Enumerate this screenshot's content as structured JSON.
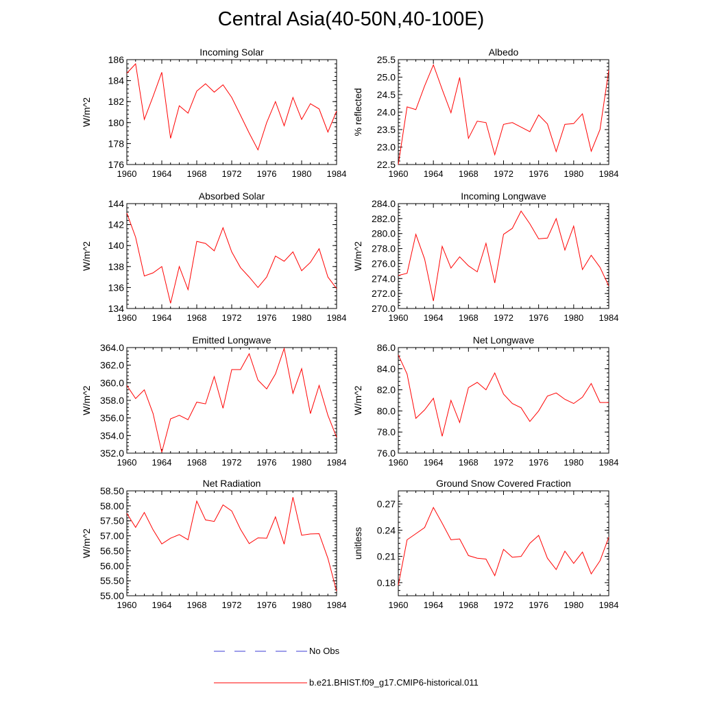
{
  "page": {
    "title": "Central Asia(40-50N,40-100E)"
  },
  "legend": {
    "items": [
      {
        "label": "No Obs",
        "color": "#3b3bd6",
        "style": "dashed"
      },
      {
        "label": "b.e21.BHIST.f09_g17.CMIP6-historical.011",
        "color": "#ff0000",
        "style": "solid"
      }
    ]
  },
  "chart_data": [
    {
      "type": "line",
      "title": "Incoming Solar",
      "ylabel": "W/m^2",
      "xlabel": "",
      "xlim": [
        1960,
        1984
      ],
      "ylim": [
        176,
        186
      ],
      "xticks": [
        "1960",
        "1964",
        "1968",
        "1972",
        "1976",
        "1980",
        "1984"
      ],
      "yticks": [
        "176",
        "178",
        "180",
        "182",
        "184",
        "186"
      ],
      "x": [
        1960,
        1961,
        1962,
        1963,
        1964,
        1965,
        1966,
        1967,
        1968,
        1969,
        1970,
        1971,
        1972,
        1973,
        1974,
        1975,
        1976,
        1977,
        1978,
        1979,
        1980,
        1981,
        1982,
        1983,
        1984
      ],
      "series": [
        {
          "name": "b.e21.BHIST.f09_g17.CMIP6-historical.011",
          "color": "#ff0000",
          "values": [
            184.7,
            185.6,
            180.3,
            182.5,
            184.8,
            178.5,
            181.6,
            180.9,
            183.0,
            183.7,
            182.9,
            183.6,
            182.4,
            180.7,
            179.0,
            177.4,
            180.0,
            182.0,
            179.7,
            182.4,
            180.3,
            181.8,
            181.3,
            179.1,
            181.1
          ]
        }
      ]
    },
    {
      "type": "line",
      "title": "Albedo",
      "ylabel": "% reflected",
      "xlabel": "",
      "xlim": [
        1960,
        1984
      ],
      "ylim": [
        22.5,
        25.5
      ],
      "xticks": [
        "1960",
        "1964",
        "1968",
        "1972",
        "1976",
        "1980",
        "1984"
      ],
      "yticks": [
        "22.5",
        "23.0",
        "23.5",
        "24.0",
        "24.5",
        "25.0",
        "25.5"
      ],
      "x": [
        1960,
        1961,
        1962,
        1963,
        1964,
        1965,
        1966,
        1967,
        1968,
        1969,
        1970,
        1971,
        1972,
        1973,
        1974,
        1975,
        1976,
        1977,
        1978,
        1979,
        1980,
        1981,
        1982,
        1983,
        1984
      ],
      "series": [
        {
          "name": "b.e21.BHIST.f09_g17.CMIP6-historical.011",
          "color": "#ff0000",
          "values": [
            22.5,
            24.15,
            24.07,
            24.75,
            25.35,
            24.65,
            23.98,
            24.99,
            23.25,
            23.74,
            23.7,
            22.78,
            23.65,
            23.7,
            23.57,
            23.44,
            23.92,
            23.66,
            22.87,
            23.65,
            23.67,
            23.95,
            22.88,
            23.5,
            25.2
          ]
        }
      ]
    },
    {
      "type": "line",
      "title": "Absorbed Solar",
      "ylabel": "W/m^2",
      "xlabel": "",
      "xlim": [
        1960,
        1984
      ],
      "ylim": [
        134,
        144
      ],
      "xticks": [
        "1960",
        "1964",
        "1968",
        "1972",
        "1976",
        "1980",
        "1984"
      ],
      "yticks": [
        "134",
        "136",
        "138",
        "140",
        "142",
        "144"
      ],
      "x": [
        1960,
        1961,
        1962,
        1963,
        1964,
        1965,
        1966,
        1967,
        1968,
        1969,
        1970,
        1971,
        1972,
        1973,
        1974,
        1975,
        1976,
        1977,
        1978,
        1979,
        1980,
        1981,
        1982,
        1983,
        1984
      ],
      "series": [
        {
          "name": "b.e21.BHIST.f09_g17.CMIP6-historical.011",
          "color": "#ff0000",
          "values": [
            143.1,
            140.8,
            137.1,
            137.4,
            138.0,
            134.5,
            138.0,
            135.8,
            140.4,
            140.2,
            139.5,
            141.7,
            139.4,
            137.9,
            137.0,
            136.0,
            137.0,
            139.0,
            138.5,
            139.4,
            137.6,
            138.4,
            139.7,
            137.0,
            135.9
          ]
        }
      ]
    },
    {
      "type": "line",
      "title": "Incoming Longwave",
      "ylabel": "W/m^2",
      "xlabel": "",
      "xlim": [
        1960,
        1984
      ],
      "ylim": [
        270,
        284
      ],
      "xticks": [
        "1960",
        "1964",
        "1968",
        "1972",
        "1976",
        "1980",
        "1984"
      ],
      "yticks": [
        "270.0",
        "272.0",
        "274.0",
        "276.0",
        "278.0",
        "280.0",
        "282.0",
        "284.0"
      ],
      "x": [
        1960,
        1961,
        1962,
        1963,
        1964,
        1965,
        1966,
        1967,
        1968,
        1969,
        1970,
        1971,
        1972,
        1973,
        1974,
        1975,
        1976,
        1977,
        1978,
        1979,
        1980,
        1981,
        1982,
        1983,
        1984
      ],
      "series": [
        {
          "name": "b.e21.BHIST.f09_g17.CMIP6-historical.011",
          "color": "#ff0000",
          "values": [
            274.4,
            274.7,
            279.9,
            276.6,
            271.0,
            278.3,
            275.4,
            276.9,
            275.7,
            274.9,
            278.7,
            273.4,
            279.9,
            280.7,
            283.0,
            281.3,
            279.3,
            279.4,
            282.0,
            277.8,
            281.0,
            275.2,
            277.1,
            275.5,
            273.0
          ]
        }
      ]
    },
    {
      "type": "line",
      "title": "Emitted Longwave",
      "ylabel": "W/m^2",
      "xlabel": "",
      "xlim": [
        1960,
        1984
      ],
      "ylim": [
        352,
        364
      ],
      "xticks": [
        "1960",
        "1964",
        "1968",
        "1972",
        "1976",
        "1980",
        "1984"
      ],
      "yticks": [
        "352.0",
        "354.0",
        "356.0",
        "358.0",
        "360.0",
        "362.0",
        "364.0"
      ],
      "x": [
        1960,
        1961,
        1962,
        1963,
        1964,
        1965,
        1966,
        1967,
        1968,
        1969,
        1970,
        1971,
        1972,
        1973,
        1974,
        1975,
        1976,
        1977,
        1978,
        1979,
        1980,
        1981,
        1982,
        1983,
        1984
      ],
      "series": [
        {
          "name": "b.e21.BHIST.f09_g17.CMIP6-historical.011",
          "color": "#ff0000",
          "values": [
            359.7,
            358.2,
            359.2,
            356.5,
            352.1,
            355.9,
            356.3,
            355.8,
            357.8,
            357.6,
            360.7,
            357.1,
            361.5,
            361.5,
            363.3,
            360.3,
            359.3,
            361.0,
            363.9,
            358.8,
            361.6,
            356.5,
            359.7,
            356.3,
            353.8
          ]
        }
      ]
    },
    {
      "type": "line",
      "title": "Net Longwave",
      "ylabel": "W/m^2",
      "xlabel": "",
      "xlim": [
        1960,
        1984
      ],
      "ylim": [
        76,
        86
      ],
      "xticks": [
        "1960",
        "1964",
        "1968",
        "1972",
        "1976",
        "1980",
        "1984"
      ],
      "yticks": [
        "76.0",
        "78.0",
        "80.0",
        "82.0",
        "84.0",
        "86.0"
      ],
      "x": [
        1960,
        1961,
        1962,
        1963,
        1964,
        1965,
        1966,
        1967,
        1968,
        1969,
        1970,
        1971,
        1972,
        1973,
        1974,
        1975,
        1976,
        1977,
        1978,
        1979,
        1980,
        1981,
        1982,
        1983,
        1984
      ],
      "series": [
        {
          "name": "b.e21.BHIST.f09_g17.CMIP6-historical.011",
          "color": "#ff0000",
          "values": [
            85.3,
            83.5,
            79.3,
            80.1,
            81.2,
            77.6,
            81.0,
            78.9,
            82.2,
            82.7,
            82.0,
            83.6,
            81.6,
            80.7,
            80.3,
            79.0,
            80.0,
            81.4,
            81.7,
            81.1,
            80.7,
            81.3,
            82.6,
            80.8,
            80.8
          ]
        }
      ]
    },
    {
      "type": "line",
      "title": "Net Radiation",
      "ylabel": "W/m^2",
      "xlabel": "",
      "xlim": [
        1960,
        1984
      ],
      "ylim": [
        55.0,
        58.5
      ],
      "xticks": [
        "1960",
        "1964",
        "1968",
        "1972",
        "1976",
        "1980",
        "1984"
      ],
      "yticks": [
        "55.00",
        "55.50",
        "56.00",
        "56.50",
        "57.00",
        "57.50",
        "58.00",
        "58.50"
      ],
      "x": [
        1960,
        1961,
        1962,
        1963,
        1964,
        1965,
        1966,
        1967,
        1968,
        1969,
        1970,
        1971,
        1972,
        1973,
        1974,
        1975,
        1976,
        1977,
        1978,
        1979,
        1980,
        1981,
        1982,
        1983,
        1984
      ],
      "series": [
        {
          "name": "b.e21.BHIST.f09_g17.CMIP6-historical.011",
          "color": "#ff0000",
          "values": [
            57.75,
            57.28,
            57.78,
            57.2,
            56.73,
            56.92,
            57.04,
            56.87,
            58.16,
            57.53,
            57.48,
            58.03,
            57.83,
            57.22,
            56.74,
            56.93,
            56.92,
            57.63,
            56.72,
            58.29,
            57.02,
            57.06,
            57.07,
            56.25,
            55.15
          ]
        }
      ]
    },
    {
      "type": "line",
      "title": "Ground Snow Covered Fraction",
      "ylabel": "unitless",
      "xlabel": "",
      "xlim": [
        1960,
        1984
      ],
      "ylim": [
        0.165,
        0.285
      ],
      "xticks": [
        "1960",
        "1964",
        "1968",
        "1972",
        "1976",
        "1980",
        "1984"
      ],
      "yticks": [
        "0.18",
        "0.21",
        "0.24",
        "0.27"
      ],
      "ytick_values": [
        0.18,
        0.21,
        0.24,
        0.27
      ],
      "x": [
        1960,
        1961,
        1962,
        1963,
        1964,
        1965,
        1966,
        1967,
        1968,
        1969,
        1970,
        1971,
        1972,
        1973,
        1974,
        1975,
        1976,
        1977,
        1978,
        1979,
        1980,
        1981,
        1982,
        1983,
        1984
      ],
      "series": [
        {
          "name": "b.e21.BHIST.f09_g17.CMIP6-historical.011",
          "color": "#ff0000",
          "values": [
            0.177,
            0.229,
            0.236,
            0.243,
            0.266,
            0.248,
            0.229,
            0.23,
            0.211,
            0.208,
            0.207,
            0.188,
            0.218,
            0.209,
            0.21,
            0.225,
            0.234,
            0.208,
            0.195,
            0.216,
            0.202,
            0.215,
            0.19,
            0.205,
            0.232
          ]
        }
      ]
    }
  ]
}
